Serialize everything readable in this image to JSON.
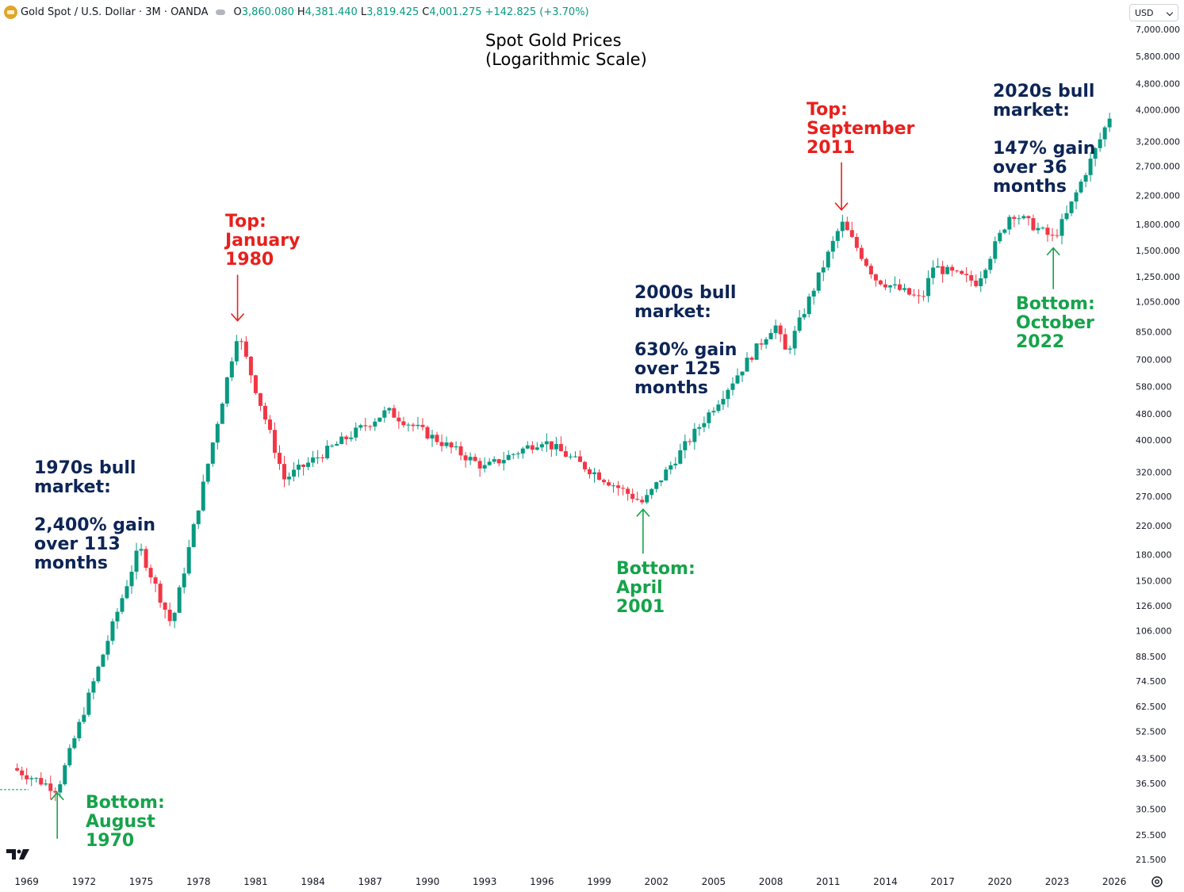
{
  "header": {
    "symbol": "Gold Spot / U.S. Dollar · 3M · OANDA",
    "ohlc": {
      "o_label": "O",
      "o": "3,860.080",
      "h_label": "H",
      "h": "4,381.440",
      "l_label": "L",
      "l": "3,819.425",
      "c_label": "C",
      "c": "4,001.275",
      "change": "+142.825 (+3.70%)"
    },
    "currency": "USD"
  },
  "colors": {
    "up": "#089981",
    "down": "#f23645",
    "blue_text": "#0d2556",
    "red_text": "#e8201c",
    "green_text": "#16a34a"
  },
  "chart_data": {
    "type": "candlestick",
    "title": "Spot Gold Prices\n(Logarithmic Scale)",
    "yscale": "log",
    "ylim": [
      20,
      7300
    ],
    "y_ticks": [
      "7,000.000",
      "5,800.000",
      "4,800.000",
      "4,000.000",
      "3,200.000",
      "2,700.000",
      "2,200.000",
      "1,800.000",
      "1,500.000",
      "1,250.000",
      "1,050.000",
      "850.000",
      "700.000",
      "580.000",
      "480.000",
      "400.000",
      "320.000",
      "270.000",
      "220.000",
      "180.000",
      "150.000",
      "126.000",
      "106.000",
      "88.500",
      "74.500",
      "62.500",
      "52.500",
      "43.500",
      "36.500",
      "30.500",
      "25.500",
      "21.500"
    ],
    "x_ticks": [
      "1969",
      "1972",
      "1975",
      "1978",
      "1981",
      "1984",
      "1987",
      "1990",
      "1993",
      "1996",
      "1999",
      "2002",
      "2005",
      "2008",
      "2011",
      "2014",
      "2017",
      "2020",
      "2023",
      "2026"
    ],
    "xlim": [
      1967.6,
      2026.2
    ],
    "key_points": [
      {
        "year": 1970.6,
        "close": 35
      },
      {
        "year": 1974.9,
        "close": 190
      },
      {
        "year": 1976.6,
        "close": 110
      },
      {
        "year": 1980.05,
        "close": 850
      },
      {
        "year": 1982.5,
        "close": 305
      },
      {
        "year": 1987.9,
        "close": 490
      },
      {
        "year": 1993.0,
        "close": 330
      },
      {
        "year": 1996.0,
        "close": 400
      },
      {
        "year": 2001.3,
        "close": 258
      },
      {
        "year": 2008.2,
        "close": 900
      },
      {
        "year": 2008.8,
        "close": 730
      },
      {
        "year": 2011.7,
        "close": 1820
      },
      {
        "year": 2013.5,
        "close": 1230
      },
      {
        "year": 2015.9,
        "close": 1060
      },
      {
        "year": 2016.5,
        "close": 1340
      },
      {
        "year": 2018.8,
        "close": 1200
      },
      {
        "year": 2020.6,
        "close": 1960
      },
      {
        "year": 2022.8,
        "close": 1630
      },
      {
        "year": 2023.5,
        "close": 1920
      },
      {
        "year": 2024.5,
        "close": 2600
      },
      {
        "year": 2025.3,
        "close": 3300
      },
      {
        "year": 2025.9,
        "close": 4001.275
      }
    ],
    "annotations": [
      {
        "id": "bull-1970s",
        "text": "1970s bull\nmarket:\n\n2,400% gain\nover 113\nmonths",
        "color": "blue"
      },
      {
        "id": "top-1980",
        "text": "Top:\nJanuary\n1980",
        "color": "red"
      },
      {
        "id": "bottom-1970",
        "text": "Bottom:\nAugust\n1970",
        "color": "green"
      },
      {
        "id": "bull-2000s",
        "text": "2000s bull\nmarket:\n\n630% gain\nover 125\nmonths",
        "color": "blue"
      },
      {
        "id": "bottom-2001",
        "text": "Bottom:\nApril\n2001",
        "color": "green"
      },
      {
        "id": "top-2011",
        "text": "Top:\nSeptember\n2011",
        "color": "red"
      },
      {
        "id": "bull-2020s",
        "text": "2020s bull\nmarket:\n\n147% gain\nover 36\nmonths",
        "color": "blue"
      },
      {
        "id": "bottom-2022",
        "text": "Bottom:\nOctober\n2022",
        "color": "green"
      }
    ]
  }
}
